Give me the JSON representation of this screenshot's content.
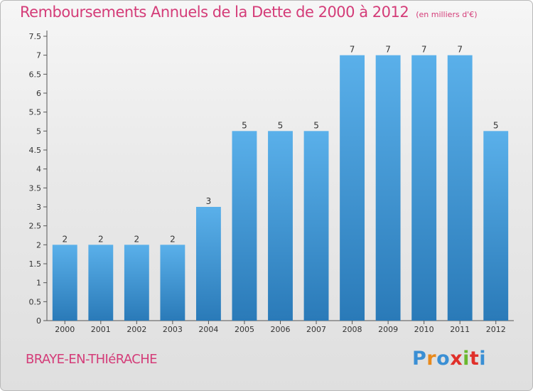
{
  "title": "Remboursements Annuels de la Dette de 2000 à 2012",
  "unit_label": "(en milliers d'€)",
  "city": "BRAYE-EN-THIéRACHE",
  "brand": {
    "letters": [
      "P",
      "r",
      "o",
      "x",
      "i",
      "t",
      "i"
    ],
    "colors": [
      "#3a8fd4",
      "#e8891c",
      "#3a8fd4",
      "#e0302a",
      "#6ab82e",
      "#e0302a",
      "#3a8fd4"
    ]
  },
  "colors": {
    "accent": "#d43c78",
    "bar_top": "#5ab0ea",
    "bar_bottom": "#2a7ab8"
  },
  "chart_data": {
    "type": "bar",
    "categories": [
      "2000",
      "2001",
      "2002",
      "2003",
      "2004",
      "2005",
      "2006",
      "2007",
      "2008",
      "2009",
      "2010",
      "2011",
      "2012"
    ],
    "values": [
      2,
      2,
      2,
      2,
      3,
      5,
      5,
      5,
      7,
      7,
      7,
      7,
      5
    ],
    "value_labels": [
      "2",
      "2",
      "2",
      "2",
      "3",
      "5",
      "5",
      "5",
      "7",
      "7",
      "7",
      "7",
      "5"
    ],
    "ylim": [
      0,
      7.5
    ],
    "yticks": [
      0,
      0.5,
      1,
      1.5,
      2,
      2.5,
      3,
      3.5,
      4,
      4.5,
      5,
      5.5,
      6,
      6.5,
      7,
      7.5
    ],
    "ytick_labels": [
      "0",
      "0.5",
      "1",
      "1.5",
      "2",
      "2.5",
      "3",
      "3.5",
      "4",
      "4.5",
      "5",
      "5.5",
      "6",
      "6.5",
      "7",
      "7.5"
    ],
    "grid": false
  }
}
